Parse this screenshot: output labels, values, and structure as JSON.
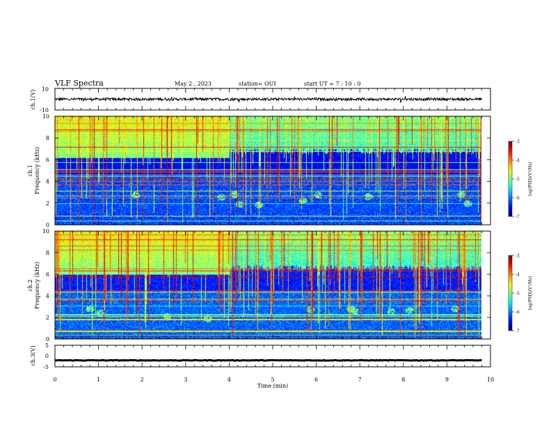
{
  "header": {
    "title": "VLF Spectra",
    "date": "May 2 , 2023",
    "station": "station= OUI",
    "start": "start  UT =   7 : 10 : 0"
  },
  "chart_data": [
    {
      "type": "line",
      "panel": "ch1-waveform",
      "ylabel": "ch.1(V)",
      "ylim": [
        -10,
        10
      ],
      "yticks": [
        "10",
        "-10"
      ],
      "xlim": [
        0,
        10
      ],
      "series": [
        {
          "x_range": [
            0,
            9.8
          ],
          "mean": 0,
          "amplitude": 1.2
        }
      ]
    },
    {
      "type": "heatmap",
      "panel": "ch1-spectrogram",
      "ylabel": [
        "ch.1",
        "Frequency (kHz)"
      ],
      "ylim": [
        0,
        10
      ],
      "yticks": [
        "0",
        "2",
        "4",
        "6",
        "8",
        "10"
      ],
      "xlim": [
        0,
        10
      ],
      "data_x_end": 9.8,
      "colorbar": {
        "label": "log(PSD)(V²/Hz)",
        "range": [
          -7,
          -3
        ],
        "ticks": [
          "-3",
          "-4",
          "-5",
          "-6",
          "-7"
        ]
      },
      "features": {
        "band_upper_edge_khz": 6.2,
        "band_edge_until_min": 4.0,
        "background_level": -6.3
      }
    },
    {
      "type": "heatmap",
      "panel": "ch2-spectrogram",
      "ylabel": [
        "ch.2",
        "Frequency (kHz)"
      ],
      "ylim": [
        0,
        10
      ],
      "yticks": [
        "0",
        "2",
        "4",
        "6",
        "8",
        "10"
      ],
      "xlim": [
        0,
        10
      ],
      "data_x_end": 9.8,
      "colorbar": {
        "label": "log(PSD)(V²/Hz)",
        "range": [
          -7,
          -3
        ],
        "ticks": [
          "-3",
          "-4",
          "-5",
          "-6",
          "-7"
        ]
      },
      "features": {
        "band_upper_edge_khz": 6.0,
        "band_edge_until_min": 4.0,
        "background_level": -6.2
      }
    },
    {
      "type": "line",
      "panel": "ch3-waveform",
      "ylabel": "ch.3(V)",
      "ylim": [
        -5,
        5
      ],
      "yticks": [
        "5",
        "0",
        "-5"
      ],
      "xlim": [
        0,
        10
      ],
      "xlabel": "Time (min)",
      "xticks": [
        "0",
        "1",
        "2",
        "3",
        "4",
        "5",
        "6",
        "7",
        "8",
        "9",
        "10"
      ],
      "series": [
        {
          "x_range": [
            0,
            9.8
          ],
          "mean": -2.0,
          "amplitude": 0.15
        }
      ]
    }
  ]
}
